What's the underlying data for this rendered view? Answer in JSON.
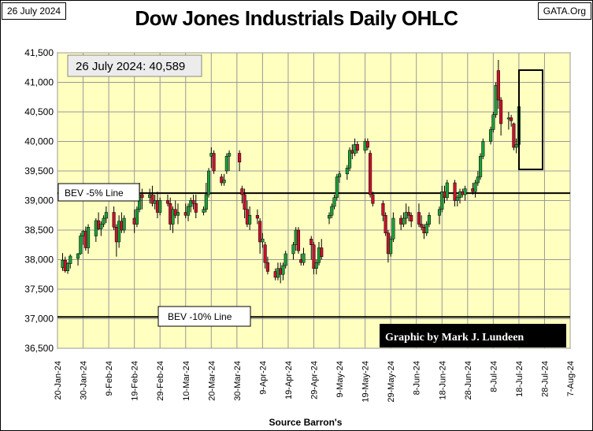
{
  "header": {
    "date_label": "26 July 2024",
    "source_label": "GATA.Org"
  },
  "chart_data": {
    "type": "ohlc-candlestick",
    "title": "Dow Jones Industrials Daily OHLC",
    "xlabel": "Source Barron's",
    "ylabel": "",
    "ylim": [
      36500,
      41500
    ],
    "y_ticks": [
      "36,500",
      "37,000",
      "37,500",
      "38,000",
      "38,500",
      "39,000",
      "39,500",
      "40,000",
      "40,500",
      "41,000",
      "41,500"
    ],
    "y_tick_values": [
      36500,
      37000,
      37500,
      38000,
      38500,
      39000,
      39500,
      40000,
      40500,
      41000,
      41500
    ],
    "x_ticks": [
      "20-Jan-24",
      "30-Jan-24",
      "9-Feb-24",
      "19-Feb-24",
      "29-Feb-24",
      "10-Mar-24",
      "20-Mar-24",
      "30-Mar-24",
      "9-Apr-24",
      "19-Apr-24",
      "29-Apr-24",
      "9-May-24",
      "19-May-24",
      "29-May-24",
      "8-Jun-24",
      "18-Jun-24",
      "28-Jun-24",
      "8-Jul-24",
      "18-Jul-24",
      "28-Jul-24",
      "7-Aug-24"
    ],
    "x_range_days": [
      0,
      200
    ],
    "grid": true,
    "annotations": {
      "latest_close": "26 July 2024: 40,589",
      "credit": "Graphic by Mark J. Lundeen",
      "bev_5_label": "BEV -5% Line",
      "bev_5_value": 39125,
      "bev_10_label": "BEV -10% Line",
      "bev_10_value": 37030
    },
    "candles": [
      {
        "d": 2,
        "o": 37865,
        "h": 38110,
        "l": 37810,
        "c": 37990
      },
      {
        "d": 3,
        "o": 37990,
        "h": 38050,
        "l": 37780,
        "c": 37810
      },
      {
        "d": 4,
        "o": 37810,
        "h": 37960,
        "l": 37760,
        "c": 37930
      },
      {
        "d": 5,
        "o": 37930,
        "h": 38090,
        "l": 37850,
        "c": 38060
      },
      {
        "d": 8,
        "o": 38020,
        "h": 38110,
        "l": 37900,
        "c": 38100
      },
      {
        "d": 9,
        "o": 38100,
        "h": 38450,
        "l": 38080,
        "c": 38400
      },
      {
        "d": 10,
        "o": 38400,
        "h": 38500,
        "l": 38250,
        "c": 38480
      },
      {
        "d": 11,
        "o": 38480,
        "h": 38560,
        "l": 38150,
        "c": 38200
      },
      {
        "d": 12,
        "o": 38200,
        "h": 38600,
        "l": 38100,
        "c": 38550
      },
      {
        "d": 15,
        "o": 38400,
        "h": 38700,
        "l": 38300,
        "c": 38660
      },
      {
        "d": 16,
        "o": 38660,
        "h": 38800,
        "l": 38500,
        "c": 38520
      },
      {
        "d": 17,
        "o": 38520,
        "h": 38650,
        "l": 38400,
        "c": 38600
      },
      {
        "d": 18,
        "o": 38600,
        "h": 38750,
        "l": 38550,
        "c": 38700
      },
      {
        "d": 19,
        "o": 38700,
        "h": 38900,
        "l": 38620,
        "c": 38800
      },
      {
        "d": 22,
        "o": 38800,
        "h": 38900,
        "l": 38500,
        "c": 38550
      },
      {
        "d": 23,
        "o": 38550,
        "h": 38600,
        "l": 38050,
        "c": 38300
      },
      {
        "d": 24,
        "o": 38300,
        "h": 38750,
        "l": 38200,
        "c": 38650
      },
      {
        "d": 25,
        "o": 38650,
        "h": 38800,
        "l": 38450,
        "c": 38500
      },
      {
        "d": 26,
        "o": 38500,
        "h": 38750,
        "l": 38450,
        "c": 38700
      },
      {
        "d": 30,
        "o": 38700,
        "h": 38850,
        "l": 38450,
        "c": 38600
      },
      {
        "d": 31,
        "o": 38600,
        "h": 38900,
        "l": 38550,
        "c": 38850
      },
      {
        "d": 32,
        "o": 38850,
        "h": 39300,
        "l": 38800,
        "c": 39100
      },
      {
        "d": 33,
        "o": 39100,
        "h": 39200,
        "l": 38850,
        "c": 39050
      },
      {
        "d": 36,
        "o": 39050,
        "h": 39200,
        "l": 38950,
        "c": 39100
      },
      {
        "d": 37,
        "o": 39100,
        "h": 39250,
        "l": 38900,
        "c": 38950
      },
      {
        "d": 38,
        "o": 38950,
        "h": 39100,
        "l": 38850,
        "c": 39000
      },
      {
        "d": 39,
        "o": 39000,
        "h": 39150,
        "l": 38700,
        "c": 38800
      },
      {
        "d": 40,
        "o": 38800,
        "h": 39050,
        "l": 38750,
        "c": 39000
      },
      {
        "d": 43,
        "o": 39000,
        "h": 39100,
        "l": 38900,
        "c": 38950
      },
      {
        "d": 44,
        "o": 38950,
        "h": 39050,
        "l": 38500,
        "c": 38600
      },
      {
        "d": 45,
        "o": 38600,
        "h": 38900,
        "l": 38450,
        "c": 38850
      },
      {
        "d": 46,
        "o": 38850,
        "h": 39000,
        "l": 38700,
        "c": 38750
      },
      {
        "d": 47,
        "o": 38750,
        "h": 38950,
        "l": 38600,
        "c": 38800
      },
      {
        "d": 50,
        "o": 38800,
        "h": 38950,
        "l": 38700,
        "c": 38750
      },
      {
        "d": 51,
        "o": 38750,
        "h": 38950,
        "l": 38650,
        "c": 38900
      },
      {
        "d": 52,
        "o": 38900,
        "h": 39050,
        "l": 38800,
        "c": 39000
      },
      {
        "d": 53,
        "o": 39000,
        "h": 39100,
        "l": 38850,
        "c": 38950
      },
      {
        "d": 54,
        "o": 38950,
        "h": 39100,
        "l": 38700,
        "c": 38800
      },
      {
        "d": 57,
        "o": 38800,
        "h": 38900,
        "l": 38750,
        "c": 38850
      },
      {
        "d": 58,
        "o": 38850,
        "h": 39300,
        "l": 38800,
        "c": 39100
      },
      {
        "d": 59,
        "o": 39100,
        "h": 39550,
        "l": 39050,
        "c": 39500
      },
      {
        "d": 60,
        "o": 39750,
        "h": 39900,
        "l": 39550,
        "c": 39800
      },
      {
        "d": 61,
        "o": 39800,
        "h": 39850,
        "l": 39450,
        "c": 39500
      },
      {
        "d": 64,
        "o": 39400,
        "h": 39450,
        "l": 39250,
        "c": 39300
      },
      {
        "d": 65,
        "o": 39300,
        "h": 39450,
        "l": 39250,
        "c": 39350
      },
      {
        "d": 66,
        "o": 39500,
        "h": 39800,
        "l": 39450,
        "c": 39750
      },
      {
        "d": 67,
        "o": 39750,
        "h": 39850,
        "l": 39500,
        "c": 39800
      },
      {
        "d": 71,
        "o": 39800,
        "h": 39850,
        "l": 39500,
        "c": 39650
      },
      {
        "d": 72,
        "o": 39200,
        "h": 39250,
        "l": 38950,
        "c": 39100
      },
      {
        "d": 73,
        "o": 39100,
        "h": 39200,
        "l": 38700,
        "c": 38850
      },
      {
        "d": 74,
        "o": 38850,
        "h": 39000,
        "l": 38550,
        "c": 38600
      },
      {
        "d": 75,
        "o": 38600,
        "h": 38900,
        "l": 38500,
        "c": 38750
      },
      {
        "d": 78,
        "o": 38750,
        "h": 38850,
        "l": 38600,
        "c": 38700
      },
      {
        "d": 79,
        "o": 38650,
        "h": 38700,
        "l": 38100,
        "c": 38300
      },
      {
        "d": 80,
        "o": 38300,
        "h": 38450,
        "l": 38200,
        "c": 38350
      },
      {
        "d": 81,
        "o": 38250,
        "h": 38300,
        "l": 37850,
        "c": 37950
      },
      {
        "d": 82,
        "o": 37950,
        "h": 38050,
        "l": 37750,
        "c": 37800
      },
      {
        "d": 85,
        "o": 37800,
        "h": 37850,
        "l": 37650,
        "c": 37700
      },
      {
        "d": 86,
        "o": 37700,
        "h": 37950,
        "l": 37650,
        "c": 37850
      },
      {
        "d": 87,
        "o": 37850,
        "h": 37950,
        "l": 37600,
        "c": 37750
      },
      {
        "d": 88,
        "o": 37750,
        "h": 37950,
        "l": 37650,
        "c": 37900
      },
      {
        "d": 89,
        "o": 37900,
        "h": 38150,
        "l": 37850,
        "c": 38100
      },
      {
        "d": 92,
        "o": 38100,
        "h": 38300,
        "l": 38000,
        "c": 38250
      },
      {
        "d": 93,
        "o": 38250,
        "h": 38550,
        "l": 38150,
        "c": 38500
      },
      {
        "d": 94,
        "o": 38500,
        "h": 38550,
        "l": 38100,
        "c": 38150
      },
      {
        "d": 95,
        "o": 38000,
        "h": 38100,
        "l": 37900,
        "c": 37950
      },
      {
        "d": 96,
        "o": 37950,
        "h": 38200,
        "l": 37900,
        "c": 38100
      },
      {
        "d": 99,
        "o": 38350,
        "h": 38400,
        "l": 38000,
        "c": 38250
      },
      {
        "d": 100,
        "o": 38250,
        "h": 38300,
        "l": 37750,
        "c": 37850
      },
      {
        "d": 101,
        "o": 37850,
        "h": 38000,
        "l": 37750,
        "c": 37950
      },
      {
        "d": 102,
        "o": 37950,
        "h": 38300,
        "l": 37900,
        "c": 38200
      },
      {
        "d": 103,
        "o": 38200,
        "h": 38350,
        "l": 38000,
        "c": 38050
      },
      {
        "d": 106,
        "o": 38700,
        "h": 38800,
        "l": 38600,
        "c": 38750
      },
      {
        "d": 107,
        "o": 38750,
        "h": 38950,
        "l": 38700,
        "c": 38900
      },
      {
        "d": 108,
        "o": 38900,
        "h": 39100,
        "l": 38850,
        "c": 39050
      },
      {
        "d": 109,
        "o": 39050,
        "h": 39450,
        "l": 39000,
        "c": 39400
      },
      {
        "d": 110,
        "o": 39400,
        "h": 39500,
        "l": 39300,
        "c": 39450
      },
      {
        "d": 113,
        "o": 39450,
        "h": 39600,
        "l": 39350,
        "c": 39550
      },
      {
        "d": 114,
        "o": 39550,
        "h": 39900,
        "l": 39500,
        "c": 39850
      },
      {
        "d": 115,
        "o": 39850,
        "h": 39950,
        "l": 39700,
        "c": 39800
      },
      {
        "d": 116,
        "o": 39800,
        "h": 40050,
        "l": 39750,
        "c": 39950
      },
      {
        "d": 117,
        "o": 39950,
        "h": 40000,
        "l": 39800,
        "c": 39850
      },
      {
        "d": 120,
        "o": 39850,
        "h": 40050,
        "l": 39800,
        "c": 40000
      },
      {
        "d": 121,
        "o": 40000,
        "h": 40050,
        "l": 39850,
        "c": 39900
      },
      {
        "d": 122,
        "o": 39800,
        "h": 39850,
        "l": 39050,
        "c": 39100
      },
      {
        "d": 123,
        "o": 39100,
        "h": 39150,
        "l": 38900,
        "c": 38950
      },
      {
        "d": 127,
        "o": 38950,
        "h": 39000,
        "l": 38650,
        "c": 38750
      },
      {
        "d": 128,
        "o": 38750,
        "h": 38800,
        "l": 38400,
        "c": 38450
      },
      {
        "d": 129,
        "o": 38450,
        "h": 38500,
        "l": 37950,
        "c": 38100
      },
      {
        "d": 130,
        "o": 38100,
        "h": 38400,
        "l": 38050,
        "c": 38350
      },
      {
        "d": 131,
        "o": 38350,
        "h": 38800,
        "l": 38300,
        "c": 38700
      },
      {
        "d": 134,
        "o": 38700,
        "h": 38750,
        "l": 38500,
        "c": 38600
      },
      {
        "d": 135,
        "o": 38600,
        "h": 38800,
        "l": 38550,
        "c": 38700
      },
      {
        "d": 136,
        "o": 38700,
        "h": 38950,
        "l": 38600,
        "c": 38800
      },
      {
        "d": 137,
        "o": 38800,
        "h": 38900,
        "l": 38650,
        "c": 38750
      },
      {
        "d": 138,
        "o": 38750,
        "h": 38800,
        "l": 38550,
        "c": 38650
      },
      {
        "d": 141,
        "o": 38800,
        "h": 38950,
        "l": 38550,
        "c": 38600
      },
      {
        "d": 142,
        "o": 38600,
        "h": 38750,
        "l": 38500,
        "c": 38550
      },
      {
        "d": 143,
        "o": 38550,
        "h": 38600,
        "l": 38350,
        "c": 38450
      },
      {
        "d": 144,
        "o": 38450,
        "h": 38650,
        "l": 38400,
        "c": 38600
      },
      {
        "d": 145,
        "o": 38600,
        "h": 38800,
        "l": 38550,
        "c": 38750
      },
      {
        "d": 149,
        "o": 38750,
        "h": 38900,
        "l": 38600,
        "c": 38850
      },
      {
        "d": 150,
        "o": 38850,
        "h": 39250,
        "l": 38800,
        "c": 39150
      },
      {
        "d": 151,
        "o": 39150,
        "h": 39250,
        "l": 38950,
        "c": 39050
      },
      {
        "d": 152,
        "o": 39050,
        "h": 39350,
        "l": 39000,
        "c": 39300
      },
      {
        "d": 155,
        "o": 39300,
        "h": 39350,
        "l": 38900,
        "c": 39000
      },
      {
        "d": 156,
        "o": 39000,
        "h": 39100,
        "l": 38900,
        "c": 39050
      },
      {
        "d": 157,
        "o": 39050,
        "h": 39200,
        "l": 38950,
        "c": 39150
      },
      {
        "d": 158,
        "o": 39150,
        "h": 39200,
        "l": 39050,
        "c": 39100
      },
      {
        "d": 159,
        "o": 39100,
        "h": 39250,
        "l": 39000,
        "c": 39200
      },
      {
        "d": 162,
        "o": 39200,
        "h": 39300,
        "l": 39100,
        "c": 39150
      },
      {
        "d": 163,
        "o": 39150,
        "h": 39350,
        "l": 39050,
        "c": 39300
      },
      {
        "d": 164,
        "o": 39300,
        "h": 39500,
        "l": 39250,
        "c": 39400
      },
      {
        "d": 165,
        "o": 39400,
        "h": 39800,
        "l": 39350,
        "c": 39750
      },
      {
        "d": 166,
        "o": 39750,
        "h": 40050,
        "l": 39700,
        "c": 40000
      },
      {
        "d": 169,
        "o": 40000,
        "h": 40250,
        "l": 39950,
        "c": 40200
      },
      {
        "d": 170,
        "o": 40200,
        "h": 40500,
        "l": 40150,
        "c": 40450
      },
      {
        "d": 171,
        "o": 40450,
        "h": 41000,
        "l": 40400,
        "c": 40950
      },
      {
        "d": 172,
        "o": 41200,
        "h": 41380,
        "l": 40550,
        "c": 40700
      },
      {
        "d": 173,
        "o": 40700,
        "h": 40750,
        "l": 40100,
        "c": 40300
      },
      {
        "d": 176,
        "o": 40400,
        "h": 40500,
        "l": 40200,
        "c": 40400
      },
      {
        "d": 177,
        "o": 40400,
        "h": 40450,
        "l": 40250,
        "c": 40350
      },
      {
        "d": 178,
        "o": 40300,
        "h": 40320,
        "l": 39850,
        "c": 39900
      },
      {
        "d": 179,
        "o": 39900,
        "h": 40050,
        "l": 39800,
        "c": 39950
      },
      {
        "d": 180,
        "o": 39950,
        "h": 40700,
        "l": 39930,
        "c": 40589
      }
    ]
  }
}
